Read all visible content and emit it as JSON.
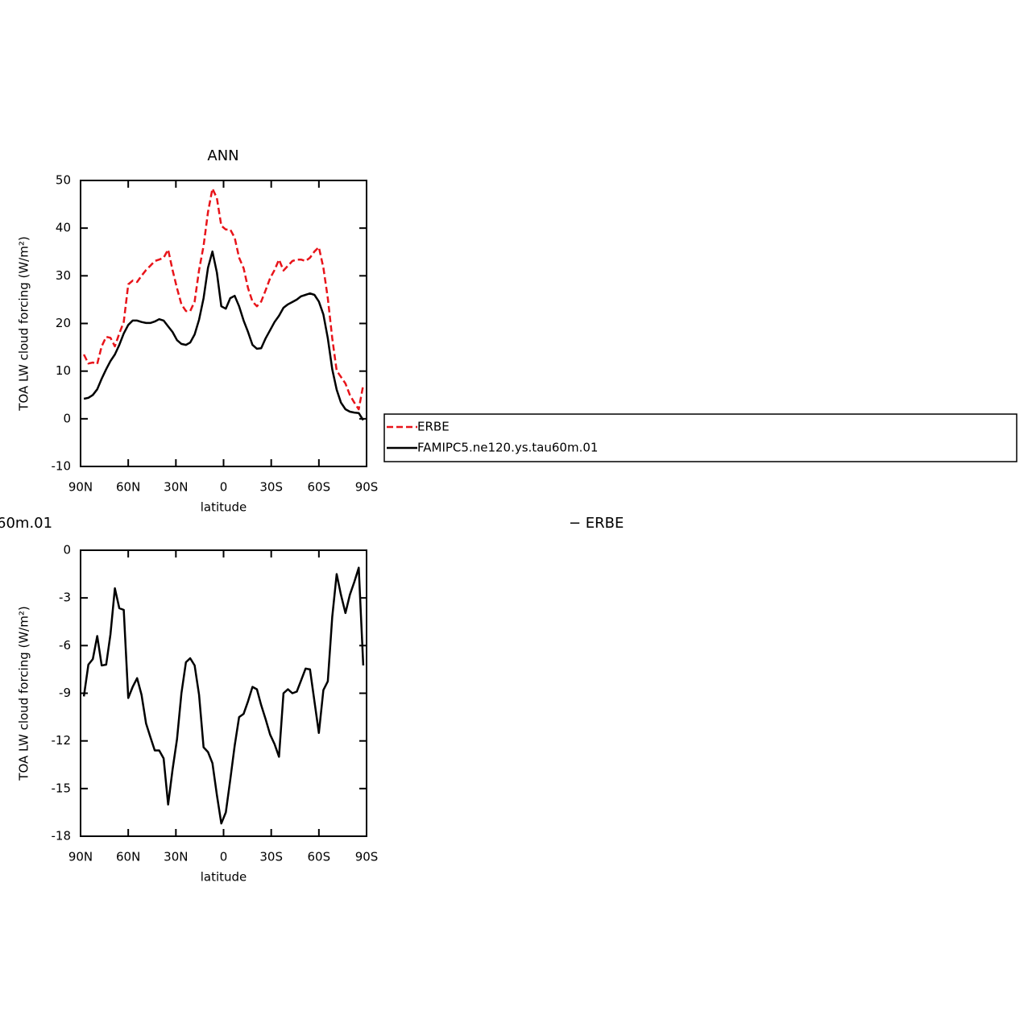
{
  "chart_data": [
    {
      "type": "line",
      "title": "ANN",
      "xlabel": "latitude",
      "ylabel": "TOA LW cloud forcing (W/m²)",
      "x": [
        87.9,
        85.1,
        82.3,
        79.5,
        76.7,
        73.9,
        71.2,
        68.4,
        65.6,
        62.8,
        60.0,
        57.2,
        54.4,
        51.6,
        48.8,
        46.1,
        43.3,
        40.5,
        37.7,
        34.9,
        32.1,
        29.3,
        26.5,
        23.7,
        21.0,
        18.2,
        15.4,
        12.6,
        9.8,
        7.0,
        4.2,
        1.4,
        -1.4,
        -4.2,
        -7.0,
        -9.8,
        -12.6,
        -15.4,
        -18.2,
        -21.0,
        -23.7,
        -26.5,
        -29.3,
        -32.1,
        -34.9,
        -37.7,
        -40.5,
        -43.3,
        -46.1,
        -48.8,
        -51.6,
        -54.4,
        -57.2,
        -60.0,
        -62.8,
        -65.6,
        -68.4,
        -71.2,
        -73.9,
        -76.7,
        -79.5,
        -82.3,
        -85.1,
        -87.9
      ],
      "series": [
        {
          "name": "ERBE",
          "color": "#e8141a",
          "dashed": true,
          "values": [
            13.5,
            11.6,
            11.8,
            11.5,
            15.2,
            17.2,
            17.0,
            15.2,
            17.9,
            20.3,
            28.2,
            29.0,
            28.7,
            30.0,
            31.2,
            32.1,
            33.1,
            33.4,
            33.8,
            35.5,
            31.2,
            27.4,
            24.0,
            22.6,
            22.6,
            24.6,
            31.2,
            36.3,
            43.4,
            48.3,
            46.3,
            40.5,
            39.7,
            39.7,
            38.0,
            33.8,
            31.6,
            27.4,
            24.6,
            23.6,
            24.6,
            27.0,
            29.5,
            31.2,
            33.4,
            31.1,
            32.1,
            33.1,
            33.4,
            33.4,
            33.1,
            33.8,
            35.1,
            36.0,
            31.7,
            25.3,
            16.9,
            10.1,
            8.8,
            7.4,
            5.0,
            3.4,
            2.0,
            7.1
          ]
        },
        {
          "name": "FAMIPC5.ne120.ys.tau60m.01",
          "color": "#000000",
          "dashed": false,
          "values": [
            4.2,
            4.4,
            5.0,
            6.2,
            8.4,
            10.4,
            12.1,
            13.5,
            15.5,
            17.9,
            19.7,
            20.6,
            20.6,
            20.3,
            20.1,
            20.1,
            20.4,
            20.9,
            20.6,
            19.4,
            18.2,
            16.5,
            15.7,
            15.5,
            16.0,
            17.7,
            20.8,
            25.3,
            31.7,
            35.1,
            30.7,
            23.6,
            23.1,
            25.3,
            25.8,
            23.6,
            20.6,
            18.2,
            15.5,
            14.7,
            14.8,
            16.9,
            18.6,
            20.3,
            21.6,
            23.3,
            24.0,
            24.5,
            25.0,
            25.7,
            26.0,
            26.3,
            26.0,
            24.6,
            21.9,
            16.9,
            10.4,
            6.1,
            3.4,
            2.0,
            1.5,
            1.3,
            1.2,
            -0.3
          ]
        }
      ],
      "xlim": [
        90,
        -90
      ],
      "xticks": [
        {
          "value": 90,
          "label": "90N"
        },
        {
          "value": 60,
          "label": "60N"
        },
        {
          "value": 30,
          "label": "30N"
        },
        0,
        {
          "value": -30,
          "label": "30S"
        },
        {
          "value": -60,
          "label": "60S"
        },
        {
          "value": -90,
          "label": "90S"
        }
      ],
      "ylim": [
        -10,
        50
      ],
      "yticks": [
        -10,
        0,
        10,
        20,
        30,
        40,
        50
      ],
      "legend": "right"
    },
    {
      "type": "line",
      "title_left": "60m.01",
      "title_right": "− ERBE",
      "xlabel": "latitude",
      "ylabel": "TOA LW cloud forcing (W/m²)",
      "x": [
        87.9,
        85.1,
        82.3,
        79.5,
        76.7,
        73.9,
        71.2,
        68.4,
        65.6,
        62.8,
        60.0,
        57.2,
        54.4,
        51.6,
        48.8,
        46.1,
        43.3,
        40.5,
        37.7,
        34.9,
        32.1,
        29.3,
        26.5,
        23.7,
        21.0,
        18.2,
        15.4,
        12.6,
        9.8,
        7.0,
        4.2,
        1.4,
        -1.4,
        -4.2,
        -7.0,
        -9.8,
        -12.6,
        -15.4,
        -18.2,
        -21.0,
        -23.7,
        -26.5,
        -29.3,
        -32.1,
        -34.9,
        -37.7,
        -40.5,
        -43.3,
        -46.1,
        -48.8,
        -51.6,
        -54.4,
        -57.2,
        -60.0,
        -62.8,
        -65.6,
        -68.4,
        -71.2,
        -73.9,
        -76.7,
        -79.5,
        -82.3,
        -85.1,
        -87.9
      ],
      "color": "#000000",
      "values": [
        -9.2,
        -7.2,
        -6.85,
        -5.4,
        -7.25,
        -7.2,
        -5.3,
        -2.4,
        -3.65,
        -3.75,
        -9.3,
        -8.6,
        -8.05,
        -9.1,
        -10.9,
        -11.75,
        -12.6,
        -12.6,
        -13.1,
        -16.0,
        -13.8,
        -11.9,
        -9.0,
        -7.05,
        -6.8,
        -7.25,
        -9.1,
        -12.4,
        -12.7,
        -13.4,
        -15.4,
        -17.2,
        -16.5,
        -14.45,
        -12.3,
        -10.5,
        -10.3,
        -9.5,
        -8.6,
        -8.75,
        -9.75,
        -10.65,
        -11.6,
        -12.2,
        -13.0,
        -9.0,
        -8.75,
        -9.0,
        -8.9,
        -8.2,
        -7.45,
        -7.5,
        -9.5,
        -11.5,
        -8.8,
        -8.25,
        -4.2,
        -1.5,
        -2.8,
        -3.95,
        -2.8,
        -2.0,
        -1.1,
        -7.25
      ],
      "xlim": [
        90,
        -90
      ],
      "xticks": [
        {
          "value": 90,
          "label": "90N"
        },
        {
          "value": 60,
          "label": "60N"
        },
        {
          "value": 30,
          "label": "30N"
        },
        0,
        {
          "value": -30,
          "label": "30S"
        },
        {
          "value": -60,
          "label": "60S"
        },
        {
          "value": -90,
          "label": "90S"
        }
      ],
      "ylim": [
        -18,
        0
      ],
      "yticks": [
        -18,
        -15,
        -12,
        -9,
        -6,
        -3,
        0
      ]
    }
  ]
}
